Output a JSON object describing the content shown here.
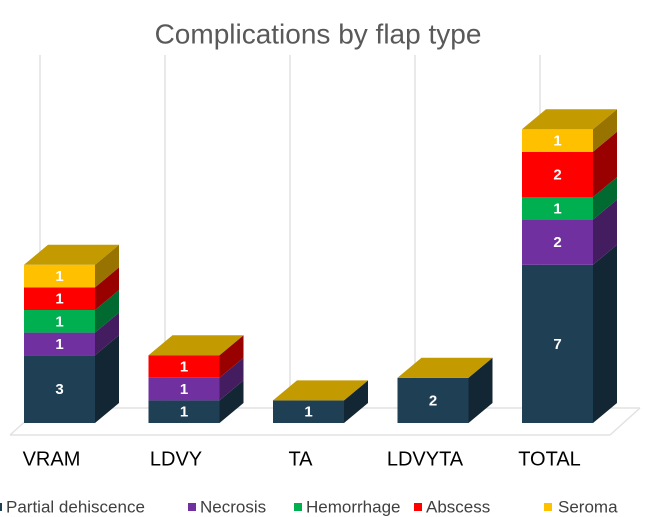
{
  "chart_data": {
    "type": "bar3d_stacked",
    "title": "Complications by flap type",
    "categories": [
      "VRAM",
      "LDVY",
      "TA",
      "LDVYTA",
      "TOTAL"
    ],
    "series": [
      {
        "name": "Partial dehiscence",
        "color": "#1f3f55",
        "values": [
          3,
          1,
          1,
          2,
          7
        ]
      },
      {
        "name": "Necrosis",
        "color": "#7030a0",
        "values": [
          1,
          1,
          0,
          0,
          2
        ]
      },
      {
        "name": "Hemorrhage",
        "color": "#00b050",
        "values": [
          1,
          0,
          0,
          0,
          1
        ]
      },
      {
        "name": "Abscess",
        "color": "#ff0000",
        "values": [
          1,
          1,
          0,
          0,
          2
        ]
      },
      {
        "name": "Seroma",
        "color": "#ffc000",
        "values": [
          1,
          0,
          0,
          0,
          1
        ]
      }
    ],
    "legend": "bottom"
  }
}
